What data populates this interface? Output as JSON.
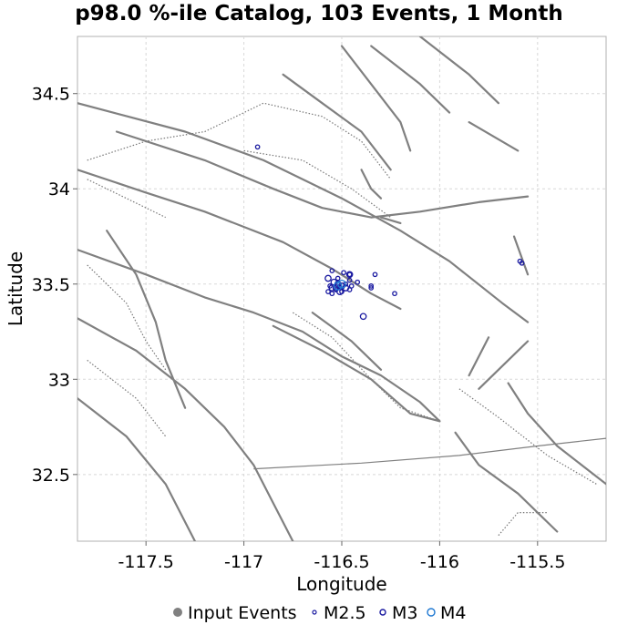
{
  "chart_data": {
    "type": "scatter",
    "title": "p98.0 %-ile Catalog, 103 Events, 1 Month",
    "xlabel": "Longitude",
    "ylabel": "Latitude",
    "xlim": [
      -117.85,
      -115.15
    ],
    "ylim": [
      32.15,
      34.8
    ],
    "x_ticks": [
      -117.5,
      -117,
      -116.5,
      -116,
      -115.5
    ],
    "x_tick_labels": [
      "-117.5",
      "-117",
      "-116.5",
      "-116",
      "-115.5"
    ],
    "y_ticks": [
      32.5,
      33,
      33.5,
      34,
      34.5
    ],
    "y_tick_labels": [
      "32.5",
      "33",
      "33.5",
      "34",
      "34.5"
    ],
    "grid": true,
    "legend_position": "bottom",
    "legend": [
      {
        "label": "Input Events",
        "marker": "filled-circle",
        "color": "#808080"
      },
      {
        "label": "M2.5",
        "marker": "open-circle",
        "color": "#1a1aa0"
      },
      {
        "label": "M3",
        "marker": "open-circle",
        "color": "#1a1aa0"
      },
      {
        "label": "M4",
        "marker": "open-circle",
        "color": "#1e78d2"
      }
    ],
    "colors": {
      "events": "#1a1aa0",
      "events_m4": "#1e78d2",
      "faults": "#808080"
    },
    "series": [
      {
        "name": "M2.5",
        "points": [
          [
            -116.93,
            34.22
          ],
          [
            -116.55,
            33.57
          ],
          [
            -116.49,
            33.56
          ],
          [
            -116.46,
            33.55
          ],
          [
            -116.33,
            33.55
          ],
          [
            -116.46,
            33.52
          ],
          [
            -116.42,
            33.51
          ],
          [
            -116.35,
            33.49
          ],
          [
            -116.35,
            33.48
          ],
          [
            -116.23,
            33.45
          ],
          [
            -116.57,
            33.46
          ],
          [
            -116.55,
            33.45
          ],
          [
            -116.53,
            33.47
          ],
          [
            -116.5,
            33.46
          ],
          [
            -116.46,
            33.47
          ],
          [
            -116.45,
            33.49
          ],
          [
            -116.48,
            33.5
          ],
          [
            -116.51,
            33.48
          ],
          [
            -116.56,
            33.49
          ],
          [
            -116.52,
            33.53
          ],
          [
            -115.59,
            33.62
          ],
          [
            -115.58,
            33.61
          ]
        ]
      },
      {
        "name": "M3",
        "points": [
          [
            -116.57,
            33.53
          ],
          [
            -116.54,
            33.51
          ],
          [
            -116.52,
            33.5
          ],
          [
            -116.5,
            33.49
          ],
          [
            -116.53,
            33.48
          ],
          [
            -116.46,
            33.55
          ],
          [
            -116.55,
            33.48
          ],
          [
            -116.51,
            33.46
          ],
          [
            -116.39,
            33.33
          ],
          [
            -116.48,
            33.48
          ]
        ]
      },
      {
        "name": "M4",
        "points": [
          [
            -116.52,
            33.49
          ],
          [
            -116.5,
            33.5
          ]
        ]
      }
    ],
    "faults": [
      [
        [
          -117.85,
          34.45
        ],
        [
          -117.3,
          34.3
        ],
        [
          -116.9,
          34.15
        ],
        [
          -116.7,
          34.05
        ],
        [
          -116.5,
          33.95
        ],
        [
          -116.2,
          33.78
        ],
        [
          -115.95,
          33.62
        ],
        [
          -115.68,
          33.4
        ],
        [
          -115.55,
          33.3
        ]
      ],
      [
        [
          -117.65,
          34.3
        ],
        [
          -117.2,
          34.15
        ],
        [
          -116.85,
          34.0
        ],
        [
          -116.6,
          33.9
        ],
        [
          -116.35,
          33.85
        ],
        [
          -116.1,
          33.88
        ],
        [
          -115.8,
          33.93
        ],
        [
          -115.55,
          33.96
        ]
      ],
      [
        [
          -117.85,
          34.1
        ],
        [
          -117.5,
          33.98
        ],
        [
          -117.2,
          33.88
        ],
        [
          -116.8,
          33.72
        ],
        [
          -116.55,
          33.58
        ],
        [
          -116.35,
          33.45
        ],
        [
          -116.2,
          33.37
        ]
      ],
      [
        [
          -117.85,
          33.68
        ],
        [
          -117.5,
          33.55
        ],
        [
          -117.2,
          33.43
        ],
        [
          -116.95,
          33.35
        ],
        [
          -116.7,
          33.25
        ],
        [
          -116.5,
          33.12
        ],
        [
          -116.3,
          33.02
        ],
        [
          -116.1,
          32.88
        ],
        [
          -116.0,
          32.78
        ]
      ],
      [
        [
          -117.85,
          33.32
        ],
        [
          -117.55,
          33.15
        ],
        [
          -117.3,
          32.95
        ],
        [
          -117.1,
          32.75
        ],
        [
          -116.95,
          32.55
        ],
        [
          -116.85,
          32.35
        ],
        [
          -116.75,
          32.15
        ]
      ],
      [
        [
          -117.85,
          32.9
        ],
        [
          -117.6,
          32.7
        ],
        [
          -117.4,
          32.45
        ],
        [
          -117.25,
          32.15
        ]
      ],
      [
        [
          -116.95,
          32.53
        ],
        [
          -116.4,
          32.56
        ],
        [
          -115.9,
          32.6
        ],
        [
          -115.5,
          32.65
        ],
        [
          -115.15,
          32.69
        ]
      ],
      [
        [
          -116.8,
          34.6
        ],
        [
          -116.6,
          34.45
        ],
        [
          -116.4,
          34.3
        ],
        [
          -116.25,
          34.1
        ]
      ],
      [
        [
          -116.5,
          34.75
        ],
        [
          -116.35,
          34.55
        ],
        [
          -116.2,
          34.35
        ],
        [
          -116.15,
          34.2
        ]
      ],
      [
        [
          -116.35,
          34.75
        ],
        [
          -116.1,
          34.55
        ],
        [
          -115.95,
          34.4
        ]
      ],
      [
        [
          -116.1,
          34.8
        ],
        [
          -115.85,
          34.6
        ],
        [
          -115.7,
          34.45
        ]
      ],
      [
        [
          -115.85,
          34.35
        ],
        [
          -115.6,
          34.2
        ]
      ],
      [
        [
          -115.75,
          33.22
        ],
        [
          -115.85,
          33.02
        ]
      ],
      [
        [
          -115.65,
          32.98
        ],
        [
          -115.55,
          32.82
        ],
        [
          -115.4,
          32.65
        ],
        [
          -115.15,
          32.45
        ]
      ],
      [
        [
          -115.92,
          32.72
        ],
        [
          -115.8,
          32.55
        ],
        [
          -115.6,
          32.4
        ],
        [
          -115.4,
          32.2
        ]
      ],
      [
        [
          -116.85,
          33.28
        ],
        [
          -116.6,
          33.15
        ],
        [
          -116.35,
          33.0
        ],
        [
          -116.15,
          32.82
        ],
        [
          -116.0,
          32.78
        ]
      ],
      [
        [
          -116.65,
          33.35
        ],
        [
          -116.45,
          33.2
        ],
        [
          -116.3,
          33.05
        ]
      ],
      [
        [
          -117.7,
          33.78
        ],
        [
          -117.55,
          33.55
        ],
        [
          -117.45,
          33.3
        ],
        [
          -117.4,
          33.1
        ],
        [
          -117.3,
          32.85
        ]
      ],
      [
        [
          -116.3,
          33.85
        ],
        [
          -116.2,
          33.82
        ]
      ],
      [
        [
          -116.4,
          34.1
        ],
        [
          -116.35,
          34.0
        ],
        [
          -116.3,
          33.95
        ]
      ],
      [
        [
          -115.62,
          33.75
        ],
        [
          -115.55,
          33.55
        ]
      ],
      [
        [
          -115.8,
          32.95
        ],
        [
          -115.65,
          33.1
        ],
        [
          -115.55,
          33.2
        ]
      ]
    ],
    "dotted_faults": [
      [
        [
          -117.8,
          34.15
        ],
        [
          -117.5,
          34.25
        ],
        [
          -117.2,
          34.3
        ],
        [
          -116.9,
          34.45
        ],
        [
          -116.6,
          34.38
        ],
        [
          -116.4,
          34.25
        ],
        [
          -116.25,
          34.05
        ]
      ],
      [
        [
          -117.8,
          34.05
        ],
        [
          -117.6,
          33.95
        ],
        [
          -117.4,
          33.85
        ]
      ],
      [
        [
          -117.8,
          33.6
        ],
        [
          -117.6,
          33.4
        ],
        [
          -117.5,
          33.2
        ],
        [
          -117.4,
          33.05
        ]
      ],
      [
        [
          -117.8,
          33.1
        ],
        [
          -117.55,
          32.9
        ],
        [
          -117.4,
          32.7
        ]
      ],
      [
        [
          -116.75,
          33.35
        ],
        [
          -116.55,
          33.22
        ],
        [
          -116.35,
          33.0
        ],
        [
          -116.2,
          32.85
        ],
        [
          -116.0,
          32.78
        ]
      ],
      [
        [
          -115.9,
          32.95
        ],
        [
          -115.7,
          32.8
        ],
        [
          -115.45,
          32.6
        ],
        [
          -115.2,
          32.45
        ]
      ],
      [
        [
          -115.7,
          32.18
        ],
        [
          -115.6,
          32.3
        ],
        [
          -115.45,
          32.3
        ]
      ],
      [
        [
          -117.0,
          34.2
        ],
        [
          -116.7,
          34.15
        ],
        [
          -116.45,
          34.0
        ],
        [
          -116.25,
          33.85
        ]
      ]
    ]
  }
}
